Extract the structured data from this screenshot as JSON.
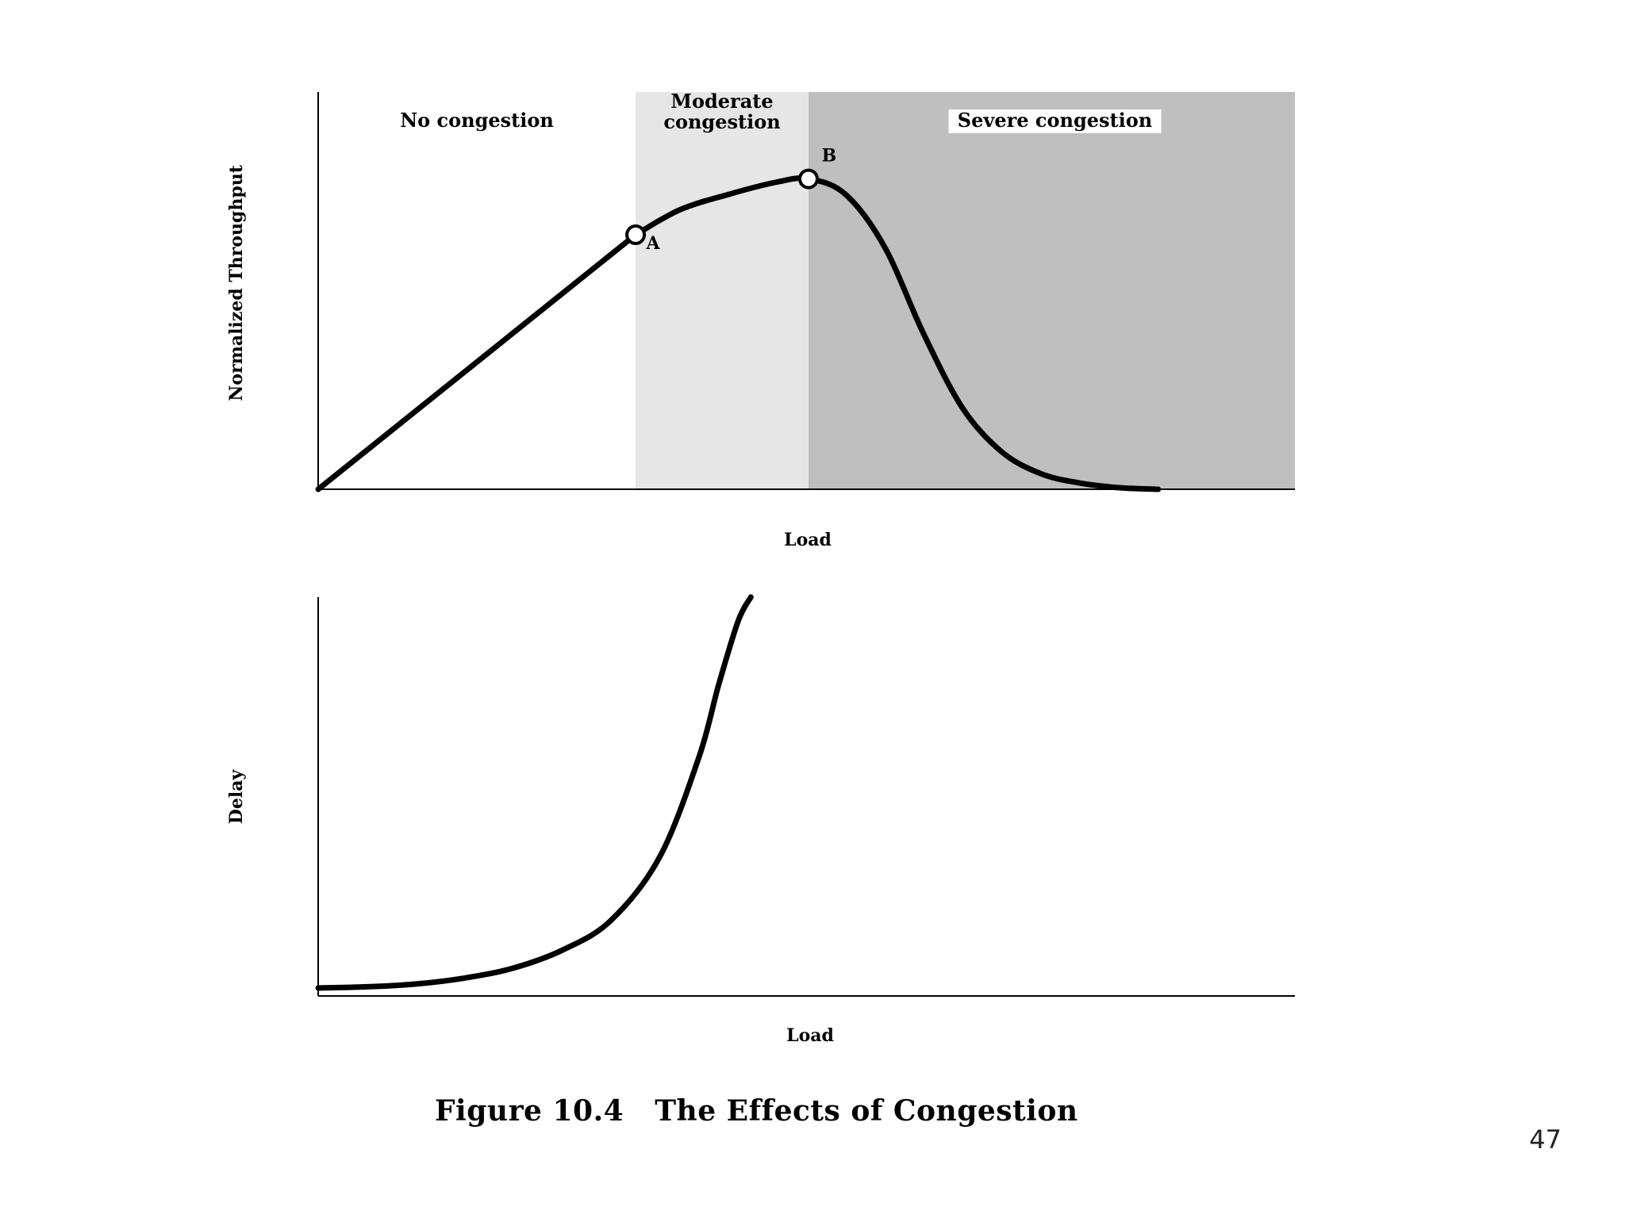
{
  "chart_data": [
    {
      "type": "line",
      "ylabel": "Normalized Throughput",
      "xlabel": "Load",
      "regions": [
        {
          "name": "No congestion",
          "label_lines": [
            "No congestion"
          ],
          "x_range": [
            0,
            0.325
          ],
          "color": "#ffffff"
        },
        {
          "name": "Moderate congestion",
          "label_lines": [
            "Moderate",
            "congestion"
          ],
          "x_range": [
            0.325,
            0.502
          ],
          "color": "#e6e6e6"
        },
        {
          "name": "Severe congestion",
          "label_lines": [
            "Severe congestion"
          ],
          "x_range": [
            0.502,
            1.0
          ],
          "color": "#bfbfbf"
        }
      ],
      "x": [
        0.0,
        0.06,
        0.12,
        0.18,
        0.24,
        0.3,
        0.325,
        0.37,
        0.42,
        0.47,
        0.502,
        0.54,
        0.58,
        0.62,
        0.66,
        0.7,
        0.74,
        0.78,
        0.82,
        0.86
      ],
      "y": [
        0.0,
        0.152,
        0.303,
        0.455,
        0.606,
        0.758,
        0.82,
        0.9,
        0.95,
        0.99,
        1.0,
        0.95,
        0.78,
        0.5,
        0.26,
        0.12,
        0.05,
        0.02,
        0.005,
        0.0
      ],
      "markers": [
        {
          "label": "A",
          "x": 0.325,
          "y": 0.82
        },
        {
          "label": "B",
          "x": 0.502,
          "y": 1.0
        }
      ],
      "xlim": [
        0,
        1
      ],
      "ylim": [
        0,
        1.28
      ],
      "grid": false
    },
    {
      "type": "line",
      "ylabel": "Delay",
      "xlabel": "Load",
      "x": [
        0.0,
        0.05,
        0.1,
        0.15,
        0.2,
        0.25,
        0.3,
        0.35,
        0.39,
        0.41,
        0.43,
        0.443
      ],
      "y": [
        0.02,
        0.023,
        0.03,
        0.045,
        0.07,
        0.115,
        0.19,
        0.35,
        0.6,
        0.78,
        0.94,
        1.0
      ],
      "xlim": [
        0,
        1
      ],
      "ylim": [
        0,
        1
      ],
      "grid": false
    }
  ],
  "caption": "Figure 10.4   The Effects of Congestion",
  "page_number": "47"
}
